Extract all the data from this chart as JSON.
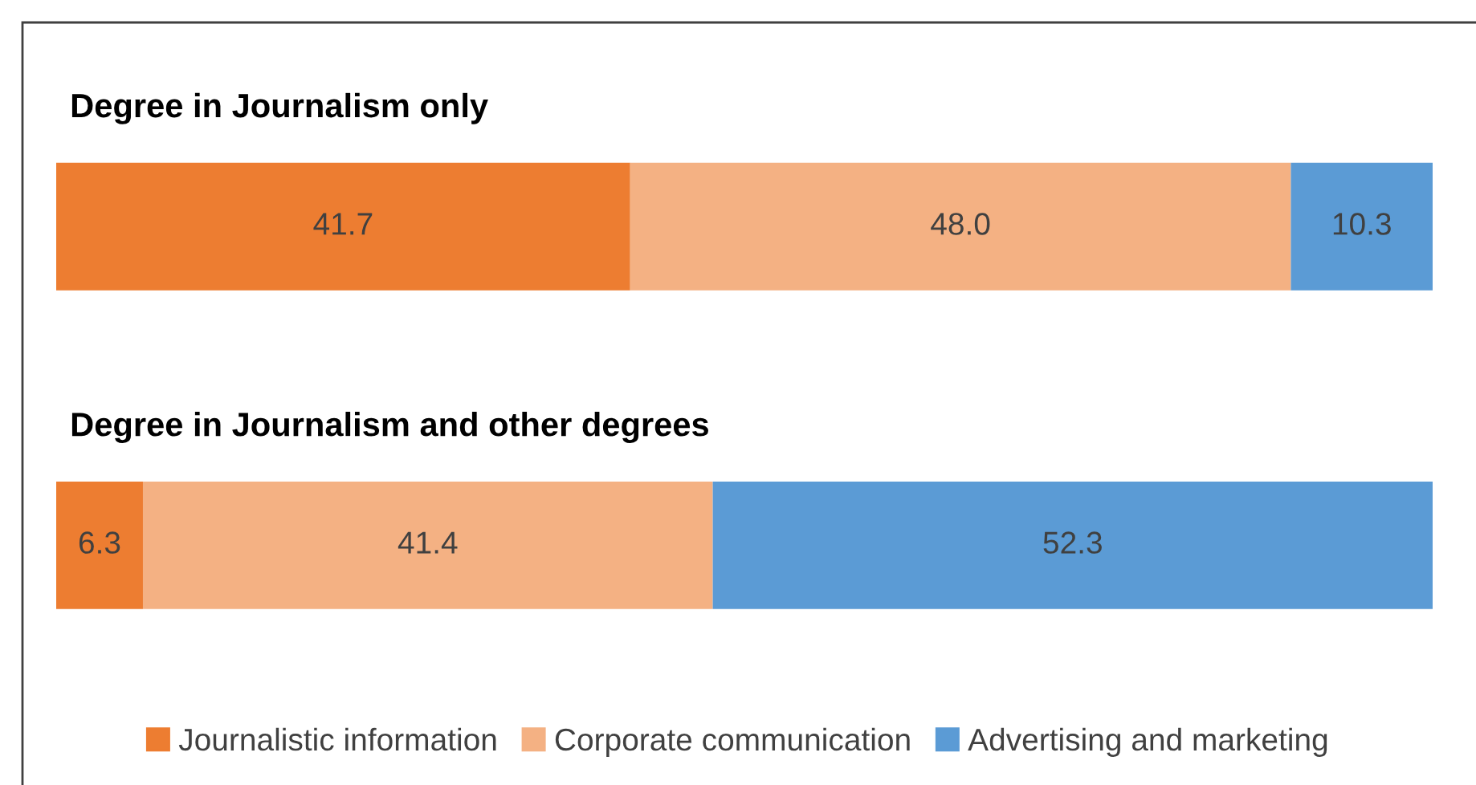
{
  "chart_data": {
    "type": "bar",
    "orientation": "horizontal",
    "stacked": true,
    "categories": [
      "Degree in Journalism only",
      "Degree in Journalism and other degrees"
    ],
    "series": [
      {
        "name": "Journalistic information",
        "color": "#ed7d31",
        "values": [
          41.7,
          6.3
        ],
        "value_labels": [
          "41.7",
          "6.3"
        ]
      },
      {
        "name": "Corporate communication",
        "color": "#f4b183",
        "values": [
          48.0,
          41.4
        ],
        "value_labels": [
          "48.0",
          "41.4"
        ]
      },
      {
        "name": "Advertising and marketing",
        "color": "#5b9bd5",
        "values": [
          10.3,
          52.3
        ],
        "value_labels": [
          "10.3",
          "52.3"
        ]
      }
    ],
    "xlim": [
      0,
      100
    ],
    "legend": "bottom"
  }
}
